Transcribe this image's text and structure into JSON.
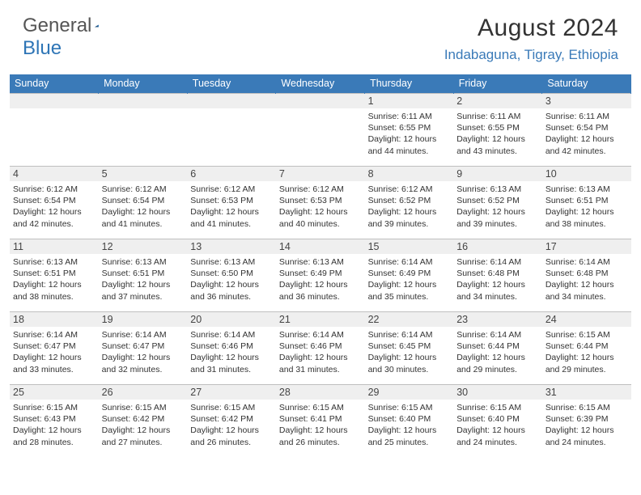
{
  "logo": {
    "text1": "General",
    "text2": "Blue"
  },
  "title": "August 2024",
  "location": "Indabaguna, Tigray, Ethiopia",
  "colors": {
    "header_bg": "#3a7ab8",
    "header_text": "#ffffff",
    "daynum_bg": "#efefef",
    "border": "#bfbfbf",
    "accent": "#2e75b6"
  },
  "day_names": [
    "Sunday",
    "Monday",
    "Tuesday",
    "Wednesday",
    "Thursday",
    "Friday",
    "Saturday"
  ],
  "weeks": [
    [
      {
        "n": "",
        "sr": "",
        "ss": "",
        "dl": ""
      },
      {
        "n": "",
        "sr": "",
        "ss": "",
        "dl": ""
      },
      {
        "n": "",
        "sr": "",
        "ss": "",
        "dl": ""
      },
      {
        "n": "",
        "sr": "",
        "ss": "",
        "dl": ""
      },
      {
        "n": "1",
        "sr": "Sunrise: 6:11 AM",
        "ss": "Sunset: 6:55 PM",
        "dl": "Daylight: 12 hours and 44 minutes."
      },
      {
        "n": "2",
        "sr": "Sunrise: 6:11 AM",
        "ss": "Sunset: 6:55 PM",
        "dl": "Daylight: 12 hours and 43 minutes."
      },
      {
        "n": "3",
        "sr": "Sunrise: 6:11 AM",
        "ss": "Sunset: 6:54 PM",
        "dl": "Daylight: 12 hours and 42 minutes."
      }
    ],
    [
      {
        "n": "4",
        "sr": "Sunrise: 6:12 AM",
        "ss": "Sunset: 6:54 PM",
        "dl": "Daylight: 12 hours and 42 minutes."
      },
      {
        "n": "5",
        "sr": "Sunrise: 6:12 AM",
        "ss": "Sunset: 6:54 PM",
        "dl": "Daylight: 12 hours and 41 minutes."
      },
      {
        "n": "6",
        "sr": "Sunrise: 6:12 AM",
        "ss": "Sunset: 6:53 PM",
        "dl": "Daylight: 12 hours and 41 minutes."
      },
      {
        "n": "7",
        "sr": "Sunrise: 6:12 AM",
        "ss": "Sunset: 6:53 PM",
        "dl": "Daylight: 12 hours and 40 minutes."
      },
      {
        "n": "8",
        "sr": "Sunrise: 6:12 AM",
        "ss": "Sunset: 6:52 PM",
        "dl": "Daylight: 12 hours and 39 minutes."
      },
      {
        "n": "9",
        "sr": "Sunrise: 6:13 AM",
        "ss": "Sunset: 6:52 PM",
        "dl": "Daylight: 12 hours and 39 minutes."
      },
      {
        "n": "10",
        "sr": "Sunrise: 6:13 AM",
        "ss": "Sunset: 6:51 PM",
        "dl": "Daylight: 12 hours and 38 minutes."
      }
    ],
    [
      {
        "n": "11",
        "sr": "Sunrise: 6:13 AM",
        "ss": "Sunset: 6:51 PM",
        "dl": "Daylight: 12 hours and 38 minutes."
      },
      {
        "n": "12",
        "sr": "Sunrise: 6:13 AM",
        "ss": "Sunset: 6:51 PM",
        "dl": "Daylight: 12 hours and 37 minutes."
      },
      {
        "n": "13",
        "sr": "Sunrise: 6:13 AM",
        "ss": "Sunset: 6:50 PM",
        "dl": "Daylight: 12 hours and 36 minutes."
      },
      {
        "n": "14",
        "sr": "Sunrise: 6:13 AM",
        "ss": "Sunset: 6:49 PM",
        "dl": "Daylight: 12 hours and 36 minutes."
      },
      {
        "n": "15",
        "sr": "Sunrise: 6:14 AM",
        "ss": "Sunset: 6:49 PM",
        "dl": "Daylight: 12 hours and 35 minutes."
      },
      {
        "n": "16",
        "sr": "Sunrise: 6:14 AM",
        "ss": "Sunset: 6:48 PM",
        "dl": "Daylight: 12 hours and 34 minutes."
      },
      {
        "n": "17",
        "sr": "Sunrise: 6:14 AM",
        "ss": "Sunset: 6:48 PM",
        "dl": "Daylight: 12 hours and 34 minutes."
      }
    ],
    [
      {
        "n": "18",
        "sr": "Sunrise: 6:14 AM",
        "ss": "Sunset: 6:47 PM",
        "dl": "Daylight: 12 hours and 33 minutes."
      },
      {
        "n": "19",
        "sr": "Sunrise: 6:14 AM",
        "ss": "Sunset: 6:47 PM",
        "dl": "Daylight: 12 hours and 32 minutes."
      },
      {
        "n": "20",
        "sr": "Sunrise: 6:14 AM",
        "ss": "Sunset: 6:46 PM",
        "dl": "Daylight: 12 hours and 31 minutes."
      },
      {
        "n": "21",
        "sr": "Sunrise: 6:14 AM",
        "ss": "Sunset: 6:46 PM",
        "dl": "Daylight: 12 hours and 31 minutes."
      },
      {
        "n": "22",
        "sr": "Sunrise: 6:14 AM",
        "ss": "Sunset: 6:45 PM",
        "dl": "Daylight: 12 hours and 30 minutes."
      },
      {
        "n": "23",
        "sr": "Sunrise: 6:14 AM",
        "ss": "Sunset: 6:44 PM",
        "dl": "Daylight: 12 hours and 29 minutes."
      },
      {
        "n": "24",
        "sr": "Sunrise: 6:15 AM",
        "ss": "Sunset: 6:44 PM",
        "dl": "Daylight: 12 hours and 29 minutes."
      }
    ],
    [
      {
        "n": "25",
        "sr": "Sunrise: 6:15 AM",
        "ss": "Sunset: 6:43 PM",
        "dl": "Daylight: 12 hours and 28 minutes."
      },
      {
        "n": "26",
        "sr": "Sunrise: 6:15 AM",
        "ss": "Sunset: 6:42 PM",
        "dl": "Daylight: 12 hours and 27 minutes."
      },
      {
        "n": "27",
        "sr": "Sunrise: 6:15 AM",
        "ss": "Sunset: 6:42 PM",
        "dl": "Daylight: 12 hours and 26 minutes."
      },
      {
        "n": "28",
        "sr": "Sunrise: 6:15 AM",
        "ss": "Sunset: 6:41 PM",
        "dl": "Daylight: 12 hours and 26 minutes."
      },
      {
        "n": "29",
        "sr": "Sunrise: 6:15 AM",
        "ss": "Sunset: 6:40 PM",
        "dl": "Daylight: 12 hours and 25 minutes."
      },
      {
        "n": "30",
        "sr": "Sunrise: 6:15 AM",
        "ss": "Sunset: 6:40 PM",
        "dl": "Daylight: 12 hours and 24 minutes."
      },
      {
        "n": "31",
        "sr": "Sunrise: 6:15 AM",
        "ss": "Sunset: 6:39 PM",
        "dl": "Daylight: 12 hours and 24 minutes."
      }
    ]
  ]
}
